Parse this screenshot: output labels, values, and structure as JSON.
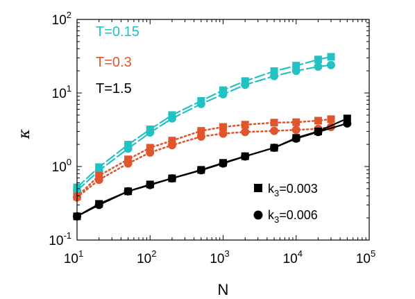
{
  "chart_data": {
    "type": "line",
    "xlabel": "N",
    "ylabel": "κ",
    "xscale": "log",
    "yscale": "log",
    "xlim": [
      10,
      100000
    ],
    "ylim": [
      0.1,
      100
    ],
    "x_ticks": [
      {
        "base": "10",
        "exp": "1"
      },
      {
        "base": "10",
        "exp": "2"
      },
      {
        "base": "10",
        "exp": "3"
      },
      {
        "base": "10",
        "exp": "4"
      },
      {
        "base": "10",
        "exp": "5"
      }
    ],
    "y_ticks": [
      {
        "base": "10",
        "exp": "-1"
      },
      {
        "base": "10",
        "exp": "0"
      },
      {
        "base": "10",
        "exp": "1"
      },
      {
        "base": "10",
        "exp": "2"
      }
    ],
    "annotations": [
      {
        "text": "T=0.15",
        "color": "#22c1c3"
      },
      {
        "text": "T=0.3",
        "color": "#e0552c"
      },
      {
        "text": "T=1.5",
        "color": "#000000"
      }
    ],
    "legend": {
      "placement": "bottom-right",
      "entries": [
        {
          "marker": "square",
          "prefix": "k",
          "sub": "3",
          "suffix": "=0.003"
        },
        {
          "marker": "circle",
          "prefix": "k",
          "sub": "3",
          "suffix": "=0.006"
        }
      ]
    },
    "series": [
      {
        "group": "T=0.15",
        "marker": "square",
        "color": "#22c1c3",
        "style": "dashed",
        "x": [
          10,
          20,
          50,
          100,
          200,
          500,
          1000,
          2000,
          5000,
          10000,
          20000,
          30000
        ],
        "y": [
          0.52,
          0.98,
          1.98,
          3.2,
          5.0,
          7.8,
          10.9,
          14.5,
          19.8,
          23.5,
          28.5,
          31.0
        ]
      },
      {
        "group": "T=0.15",
        "marker": "circle",
        "color": "#22c1c3",
        "style": "dashed",
        "x": [
          10,
          20,
          50,
          100,
          200,
          500,
          1000,
          2000,
          5000,
          10000,
          20000,
          30000
        ],
        "y": [
          0.47,
          0.88,
          1.75,
          2.9,
          4.5,
          7.1,
          9.6,
          12.9,
          17.0,
          20.0,
          22.8,
          24.0
        ]
      },
      {
        "group": "T=0.3",
        "marker": "square",
        "color": "#e0552c",
        "style": "dotted",
        "x": [
          10,
          20,
          50,
          100,
          200,
          500,
          1000,
          2000,
          5000,
          10000,
          20000,
          30000
        ],
        "y": [
          0.39,
          0.75,
          1.25,
          1.8,
          2.25,
          3.05,
          3.45,
          3.7,
          3.95,
          4.0,
          4.2,
          4.4
        ]
      },
      {
        "group": "T=0.3",
        "marker": "circle",
        "color": "#e0552c",
        "style": "dotted",
        "x": [
          10,
          20,
          50,
          100,
          200,
          500,
          1000,
          2000,
          5000,
          10000,
          20000,
          30000
        ],
        "y": [
          0.38,
          0.66,
          1.1,
          1.55,
          1.95,
          2.55,
          2.8,
          2.95,
          3.05,
          3.15,
          3.25,
          3.45
        ]
      },
      {
        "group": "T=1.5",
        "marker": "square",
        "color": "#000000",
        "style": "solid",
        "x": [
          10,
          20,
          50,
          100,
          200,
          500,
          1000,
          2000,
          5000,
          10000,
          20000,
          50000
        ],
        "y": [
          0.21,
          0.31,
          0.46,
          0.57,
          0.69,
          0.9,
          1.12,
          1.38,
          1.8,
          2.45,
          3.0,
          4.5
        ]
      },
      {
        "group": "T=1.5",
        "marker": "circle",
        "color": "#000000",
        "style": "solid",
        "x": [
          10,
          20,
          50,
          100,
          200,
          500,
          1000,
          2000,
          5000,
          10000,
          20000,
          50000
        ],
        "y": [
          0.21,
          0.3,
          0.46,
          0.56,
          0.69,
          0.89,
          1.1,
          1.37,
          1.8,
          2.4,
          2.95,
          3.85
        ]
      }
    ]
  }
}
